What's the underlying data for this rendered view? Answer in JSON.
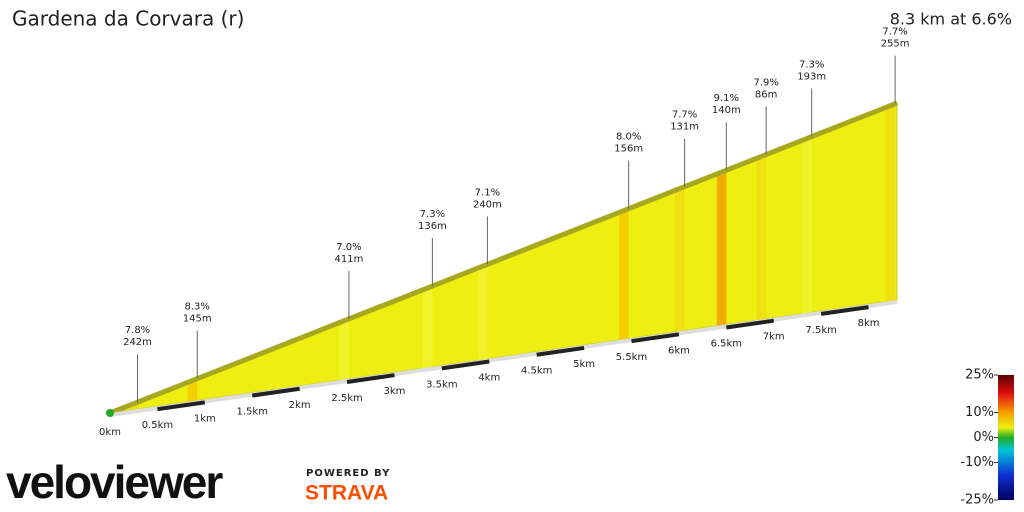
{
  "chart_data": {
    "type": "profile",
    "title": "Gardena da Corvara (r)",
    "subtitle": "8.3 km at 6.6%",
    "xlim": [
      0,
      8.3
    ],
    "xticks": [
      {
        "value": 0,
        "label": "0km"
      },
      {
        "value": 0.5,
        "label": "0.5km"
      },
      {
        "value": 1,
        "label": "1km"
      },
      {
        "value": 1.5,
        "label": "1.5km"
      },
      {
        "value": 2,
        "label": "2km"
      },
      {
        "value": 2.5,
        "label": "2.5km"
      },
      {
        "value": 3,
        "label": "3km"
      },
      {
        "value": 3.5,
        "label": "3.5km"
      },
      {
        "value": 4,
        "label": "4km"
      },
      {
        "value": 4.5,
        "label": "4.5km"
      },
      {
        "value": 5,
        "label": "5km"
      },
      {
        "value": 5.5,
        "label": "5.5km"
      },
      {
        "value": 6,
        "label": "6km"
      },
      {
        "value": 6.5,
        "label": "6.5km"
      },
      {
        "value": 7,
        "label": "7km"
      },
      {
        "value": 7.5,
        "label": "7.5km"
      },
      {
        "value": 8,
        "label": "8km"
      }
    ],
    "annotations": [
      {
        "x": 0.29,
        "grade": {
          "value": 7.8,
          "label": "7.8%"
        },
        "length": {
          "value": 242,
          "label": "242m"
        }
      },
      {
        "x": 0.92,
        "grade": {
          "value": 8.3,
          "label": "8.3%"
        },
        "length": {
          "value": 145,
          "label": "145m"
        }
      },
      {
        "x": 2.52,
        "grade": {
          "value": 7.0,
          "label": "7.0%"
        },
        "length": {
          "value": 411,
          "label": "411m"
        }
      },
      {
        "x": 3.4,
        "grade": {
          "value": 7.3,
          "label": "7.3%"
        },
        "length": {
          "value": 136,
          "label": "136m"
        }
      },
      {
        "x": 3.98,
        "grade": {
          "value": 7.1,
          "label": "7.1%"
        },
        "length": {
          "value": 240,
          "label": "240m"
        }
      },
      {
        "x": 5.47,
        "grade": {
          "value": 8.0,
          "label": "8.0%"
        },
        "length": {
          "value": 156,
          "label": "156m"
        }
      },
      {
        "x": 6.06,
        "grade": {
          "value": 7.7,
          "label": "7.7%"
        },
        "length": {
          "value": 131,
          "label": "131m"
        }
      },
      {
        "x": 6.5,
        "grade": {
          "value": 9.1,
          "label": "9.1%"
        },
        "length": {
          "value": 140,
          "label": "140m"
        }
      },
      {
        "x": 6.92,
        "grade": {
          "value": 7.9,
          "label": "7.9%"
        },
        "length": {
          "value": 86,
          "label": "86m"
        }
      },
      {
        "x": 7.4,
        "grade": {
          "value": 7.3,
          "label": "7.3%"
        },
        "length": {
          "value": 193,
          "label": "193m"
        }
      },
      {
        "x": 8.28,
        "grade": {
          "value": 7.7,
          "label": "7.7%"
        },
        "length": {
          "value": 255,
          "label": "255m"
        }
      }
    ],
    "color_scale": {
      "lim": [
        -25,
        25
      ],
      "ticks": [
        {
          "value": 25,
          "label": "25%"
        },
        {
          "value": 10,
          "label": "10%"
        },
        {
          "value": 0,
          "label": "0%"
        },
        {
          "value": -10,
          "label": "-10%"
        },
        {
          "value": -25,
          "label": "-25%"
        }
      ]
    },
    "branding": {
      "logo": "veloviewer",
      "powered": "POWERED BY",
      "partner": "STRAVA"
    }
  }
}
